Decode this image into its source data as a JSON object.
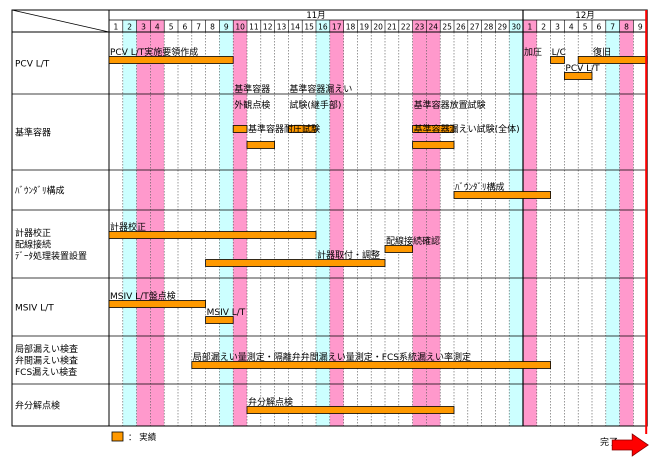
{
  "chart_data": {
    "type": "gantt",
    "months": [
      {
        "label": "11月",
        "days": 30
      },
      {
        "label": "12月",
        "days": 9
      }
    ],
    "day_numbers": [
      1,
      2,
      3,
      4,
      5,
      6,
      7,
      8,
      9,
      10,
      11,
      12,
      13,
      14,
      15,
      16,
      17,
      18,
      19,
      20,
      21,
      22,
      23,
      24,
      25,
      26,
      27,
      28,
      29,
      30,
      1,
      2,
      3,
      4,
      5,
      6,
      7,
      8,
      9
    ],
    "day_colors": [
      "",
      "cyan",
      "pink",
      "pink",
      "",
      "",
      "",
      "",
      "cyan",
      "pink",
      "",
      "",
      "",
      "",
      "",
      "cyan",
      "pink",
      "",
      "",
      "",
      "",
      "",
      "pink",
      "pink",
      "",
      "",
      "",
      "",
      "",
      "cyan",
      "pink",
      "",
      "",
      "",
      "",
      "",
      "cyan",
      "pink",
      ""
    ],
    "highlight_colors": {
      "cyan": "#ccffff",
      "pink": "#ff99cc"
    },
    "bar_color": "#ff9900",
    "rows": [
      {
        "label": [
          "PCV L/T"
        ],
        "lines": 1,
        "bars": [
          {
            "start": 1,
            "end": 10,
            "lane": 0
          },
          {
            "start": 33,
            "end": 34,
            "lane": 0
          },
          {
            "start": 35,
            "end": 40,
            "lane": 0
          },
          {
            "start": 34,
            "end": 36,
            "lane": 1
          }
        ],
        "notes": [
          {
            "text": "PCV L/T実施要領作成",
            "day": 1,
            "lane": 0
          },
          {
            "text": "加圧",
            "day": 31,
            "lane": 0
          },
          {
            "text": "L/C",
            "day": 33,
            "lane": 0
          },
          {
            "text": "復旧",
            "day": 36,
            "lane": 0
          },
          {
            "text": "PCV L/T",
            "day": 34,
            "lane": 1
          }
        ]
      },
      {
        "label": [
          "基準容器"
        ],
        "lines": 1,
        "bars": [
          {
            "start": 10,
            "end": 11,
            "lane": 0
          },
          {
            "start": 14,
            "end": 16,
            "lane": 0
          },
          {
            "start": 23,
            "end": 26,
            "lane": 0
          },
          {
            "start": 11,
            "end": 13,
            "lane": 1
          },
          {
            "start": 23,
            "end": 26,
            "lane": 1
          }
        ],
        "notes": [
          {
            "text": "基準容器",
            "day": 10,
            "lane": -2
          },
          {
            "text": "外観点検",
            "day": 10,
            "lane": -1
          },
          {
            "text": "基準容器漏えい",
            "day": 14,
            "lane": -2
          },
          {
            "text": "試験(継手部)",
            "day": 14,
            "lane": -1
          },
          {
            "text": "基準容器放置試験",
            "day": 23,
            "lane": -1
          },
          {
            "text": "基準容器耐圧試験",
            "day": 11,
            "lane": 0.5
          },
          {
            "text": "基準容器漏えい試験(全体)",
            "day": 23,
            "lane": 0.5
          }
        ]
      },
      {
        "label": [
          "ﾊﾞｳﾝﾀﾞﾘ構成"
        ],
        "lines": 1,
        "bars": [
          {
            "start": 26,
            "end": 33,
            "lane": 0
          }
        ],
        "notes": [
          {
            "text": "ﾊﾞｳﾝﾀﾞﾘ構成",
            "day": 26,
            "lane": 0
          }
        ]
      },
      {
        "label": [
          "計器校正",
          "配線接続",
          "ﾃﾞｰﾀ処理装置設置"
        ],
        "lines": 3,
        "bars": [
          {
            "start": 1,
            "end": 16,
            "lane": 0
          },
          {
            "start": 21,
            "end": 23,
            "lane": 1
          },
          {
            "start": 8,
            "end": 21,
            "lane": 2
          }
        ],
        "notes": [
          {
            "text": "計器校正",
            "day": 1,
            "lane": 0
          },
          {
            "text": "配線接続確認",
            "day": 21,
            "lane": 1
          },
          {
            "text": "計器取付・調整",
            "day": 16,
            "lane": 2
          }
        ]
      },
      {
        "label": [
          "MSIV L/T"
        ],
        "lines": 1,
        "bars": [
          {
            "start": 1,
            "end": 8,
            "lane": 0
          },
          {
            "start": 8,
            "end": 10,
            "lane": 1
          }
        ],
        "notes": [
          {
            "text": "MSIV L/T盤点検",
            "day": 1,
            "lane": 0
          },
          {
            "text": "MSIV L/T",
            "day": 8,
            "lane": 1
          }
        ]
      },
      {
        "label": [
          "局部漏えい検査",
          "弁間漏えい検査",
          "FCS漏えい検査"
        ],
        "lines": 3,
        "bars": [
          {
            "start": 7,
            "end": 33,
            "lane": 0
          }
        ],
        "notes": [
          {
            "text": "局部漏えい量測定・隔離弁弁間漏えい量測定・FCS系統漏えい率測定",
            "day": 7,
            "lane": 0
          }
        ]
      },
      {
        "label": [
          "弁分解点検"
        ],
        "lines": 1,
        "bars": [
          {
            "start": 11,
            "end": 26,
            "lane": 0
          }
        ],
        "notes": [
          {
            "text": "弁分解点検",
            "day": 11,
            "lane": 0
          }
        ]
      }
    ],
    "legend": {
      "label": "： 実績"
    },
    "finish_label": "完了"
  }
}
